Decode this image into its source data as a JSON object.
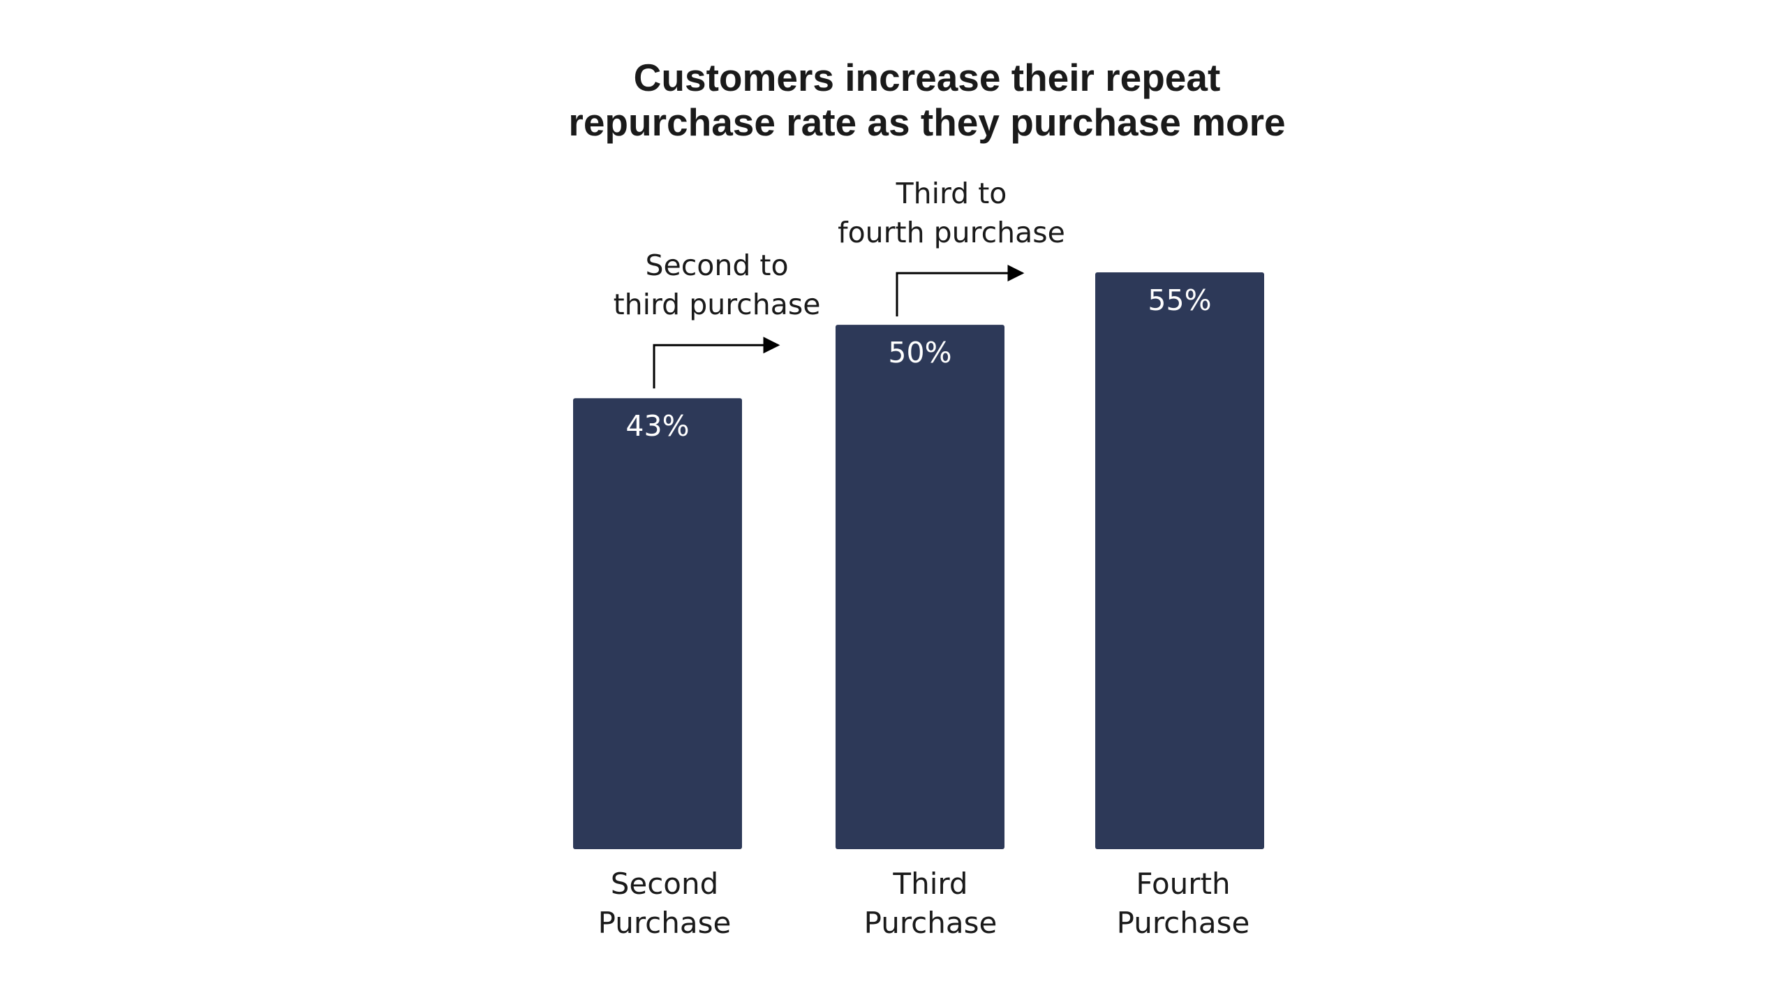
{
  "chart_data": {
    "type": "bar",
    "title": "Customers increase their repeat repurchase rate as they purchase more",
    "title_lines": [
      "Customers increase their repeat",
      "repurchase rate as they purchase more"
    ],
    "categories": [
      [
        "Second",
        "Purchase"
      ],
      [
        "Third",
        "Purchase"
      ],
      [
        "Fourth",
        "Purchase"
      ]
    ],
    "values": [
      43,
      50,
      55
    ],
    "value_labels": [
      "43%",
      "50%",
      "55%"
    ],
    "xlabel": "",
    "ylabel": "",
    "ylim": [
      0,
      55
    ],
    "grid": false,
    "bar_color": "#2d3958",
    "annotations": [
      {
        "text_lines": [
          "Second to",
          "third purchase"
        ],
        "from_bar": 0
      },
      {
        "text_lines": [
          "Third to",
          "fourth purchase"
        ],
        "from_bar": 1
      }
    ]
  }
}
